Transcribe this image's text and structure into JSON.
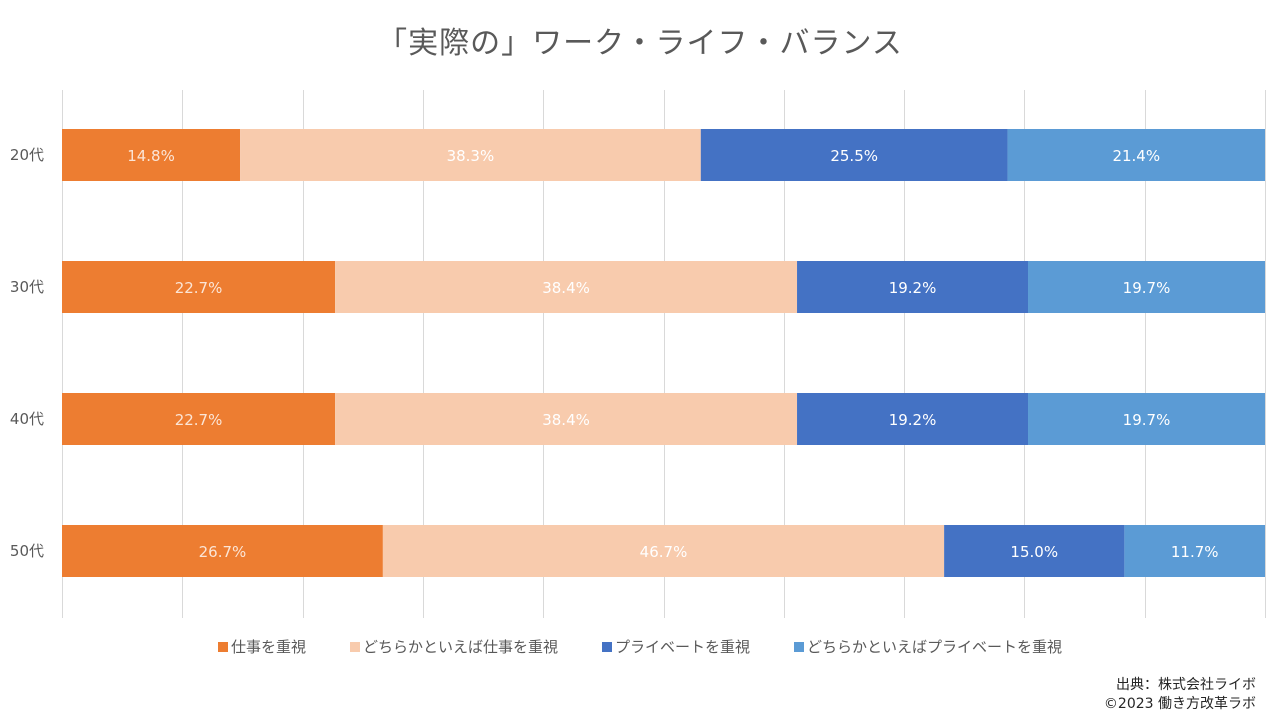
{
  "chart_data": {
    "type": "bar",
    "orientation": "horizontal",
    "stacked": "percent",
    "title": "「実際の」ワーク・ライフ・バランス",
    "xlabel": "",
    "ylabel": "",
    "xlim": [
      0,
      100
    ],
    "grid": true,
    "gridline_count": 10,
    "legend_position": "bottom",
    "categories": [
      "20代",
      "30代",
      "40代",
      "50代"
    ],
    "series": [
      {
        "name": "仕事を重視",
        "color": "#ED7D31",
        "label_color": "#FBE5D6",
        "values": [
          14.8,
          22.7,
          22.7,
          26.7
        ],
        "labels": [
          "14.8%",
          "22.7%",
          "22.7%",
          "26.7%"
        ]
      },
      {
        "name": "どちらかといえば仕事を重視",
        "color": "#F8CBAD",
        "label_color": "#FFFFFF",
        "values": [
          38.3,
          38.4,
          38.4,
          46.7
        ],
        "labels": [
          "38.3%",
          "38.4%",
          "38.4%",
          "46.7%"
        ]
      },
      {
        "name": "プライベートを重視",
        "color": "#4472C4",
        "label_color": "#FFFFFF",
        "values": [
          25.5,
          19.2,
          19.2,
          15.0
        ],
        "labels": [
          "25.5%",
          "19.2%",
          "19.2%",
          "15.0%"
        ]
      },
      {
        "name": "どちらかといえばプライベートを重視",
        "color": "#5B9BD5",
        "label_color": "#FFFFFF",
        "values": [
          21.4,
          19.7,
          19.7,
          11.7
        ],
        "labels": [
          "21.4%",
          "19.7%",
          "19.7%",
          "11.7%"
        ]
      }
    ]
  },
  "source": {
    "line1": "出典：株式会社ライボ",
    "line2": "©2023 働き方改革ラボ"
  }
}
